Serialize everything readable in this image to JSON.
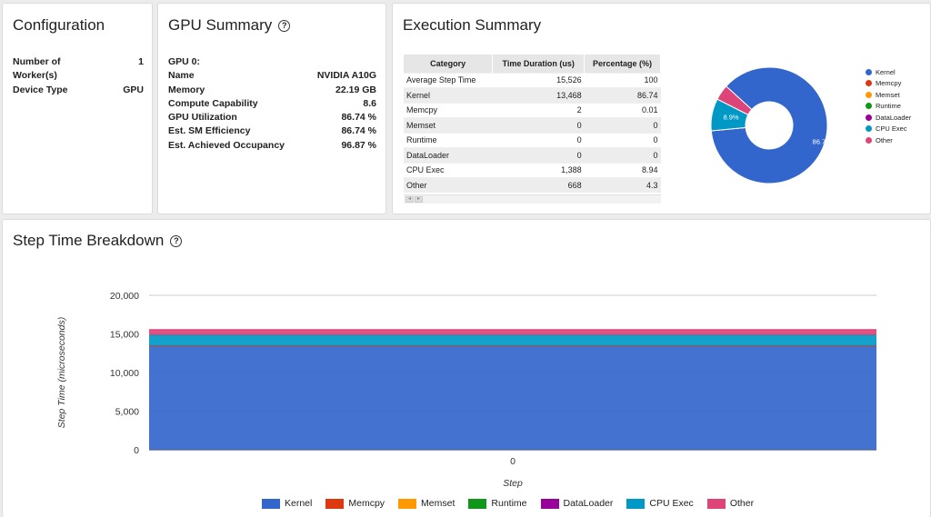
{
  "configuration": {
    "title": "Configuration",
    "rows": [
      {
        "label": "Number of Worker(s)",
        "value": "1"
      },
      {
        "label": "Device Type",
        "value": "GPU"
      }
    ]
  },
  "gpu_summary": {
    "title": "GPU Summary",
    "gpu_label": "GPU 0:",
    "rows": [
      {
        "label": "Name",
        "value": "NVIDIA A10G"
      },
      {
        "label": "Memory",
        "value": "22.19 GB"
      },
      {
        "label": "Compute Capability",
        "value": "8.6"
      },
      {
        "label": "GPU Utilization",
        "value": "86.74 %"
      },
      {
        "label": "Est. SM Efficiency",
        "value": "86.74 %"
      },
      {
        "label": "Est. Achieved Occupancy",
        "value": "96.87 %"
      }
    ]
  },
  "execution_summary": {
    "title": "Execution Summary",
    "headers": [
      "Category",
      "Time Duration (us)",
      "Percentage (%)"
    ],
    "rows": [
      [
        "Average Step Time",
        "15,526",
        "100"
      ],
      [
        "Kernel",
        "13,468",
        "86.74"
      ],
      [
        "Memcpy",
        "2",
        "0.01"
      ],
      [
        "Memset",
        "0",
        "0"
      ],
      [
        "Runtime",
        "0",
        "0"
      ],
      [
        "DataLoader",
        "0",
        "0"
      ],
      [
        "CPU Exec",
        "1,388",
        "8.94"
      ],
      [
        "Other",
        "668",
        "4.3"
      ]
    ]
  },
  "pie": {
    "labels": [
      "Kernel",
      "Memcpy",
      "Memset",
      "Runtime",
      "DataLoader",
      "CPU Exec",
      "Other"
    ],
    "values": [
      86.74,
      0.01,
      0,
      0,
      0,
      8.94,
      4.3
    ],
    "colors": [
      "#3366cc",
      "#dc3912",
      "#ff9900",
      "#109618",
      "#990099",
      "#0099c6",
      "#dd4477"
    ],
    "slice_labels": [
      "86.7%",
      "",
      "",
      "",
      "",
      "8.9%",
      ""
    ]
  },
  "step_time": {
    "title": "Step Time Breakdown"
  },
  "chart_data": {
    "type": "area",
    "stacked": true,
    "x": [
      0
    ],
    "xlabel": "Step",
    "ylabel": "Step Time (microseconds)",
    "ylim": [
      0,
      20000
    ],
    "yticks": [
      "20,000",
      "15,000",
      "10,000",
      "5,000",
      "0"
    ],
    "xticks": [
      "0"
    ],
    "series": [
      {
        "name": "Kernel",
        "values": [
          13468
        ],
        "color": "#3366cc"
      },
      {
        "name": "Memcpy",
        "values": [
          2
        ],
        "color": "#dc3912"
      },
      {
        "name": "Memset",
        "values": [
          0
        ],
        "color": "#ff9900"
      },
      {
        "name": "Runtime",
        "values": [
          0
        ],
        "color": "#109618"
      },
      {
        "name": "DataLoader",
        "values": [
          0
        ],
        "color": "#990099"
      },
      {
        "name": "CPU Exec",
        "values": [
          1388
        ],
        "color": "#0099c6"
      },
      {
        "name": "Other",
        "values": [
          668
        ],
        "color": "#dd4477"
      }
    ],
    "legend": "bottom",
    "grid": true
  }
}
